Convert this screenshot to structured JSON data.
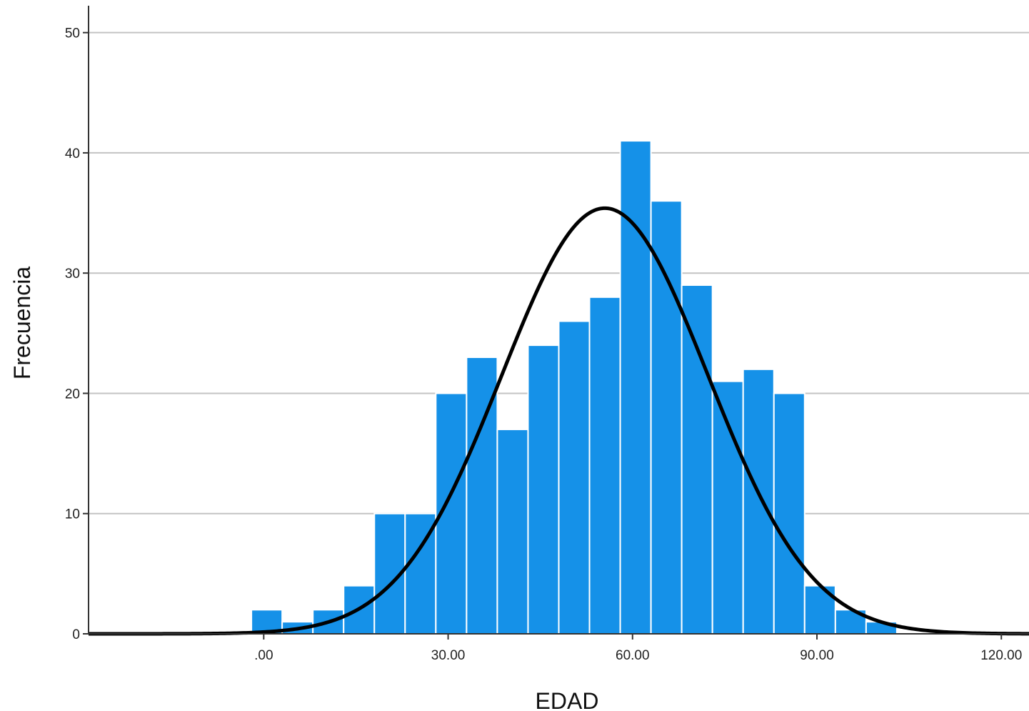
{
  "chart_data": {
    "type": "bar",
    "subtype": "histogram",
    "xlabel": "EDAD",
    "ylabel": "Frecuencia",
    "bin_width": 5,
    "bins": [
      {
        "start": -2,
        "end": 3,
        "count": 2
      },
      {
        "start": 3,
        "end": 8,
        "count": 1
      },
      {
        "start": 8,
        "end": 13,
        "count": 2
      },
      {
        "start": 13,
        "end": 18,
        "count": 4
      },
      {
        "start": 18,
        "end": 23,
        "count": 10
      },
      {
        "start": 23,
        "end": 28,
        "count": 10
      },
      {
        "start": 28,
        "end": 33,
        "count": 20
      },
      {
        "start": 33,
        "end": 38,
        "count": 23
      },
      {
        "start": 38,
        "end": 43,
        "count": 17
      },
      {
        "start": 43,
        "end": 48,
        "count": 24
      },
      {
        "start": 48,
        "end": 53,
        "count": 26
      },
      {
        "start": 53,
        "end": 58,
        "count": 28
      },
      {
        "start": 58,
        "end": 63,
        "count": 41
      },
      {
        "start": 63,
        "end": 68,
        "count": 36
      },
      {
        "start": 68,
        "end": 73,
        "count": 29
      },
      {
        "start": 73,
        "end": 78,
        "count": 21
      },
      {
        "start": 78,
        "end": 83,
        "count": 22
      },
      {
        "start": 83,
        "end": 88,
        "count": 20
      },
      {
        "start": 88,
        "end": 93,
        "count": 4
      },
      {
        "start": 93,
        "end": 98,
        "count": 2
      },
      {
        "start": 98,
        "end": 103,
        "count": 1
      }
    ],
    "normal_curve": {
      "mean": 55.5,
      "sd": 16.8,
      "peak": 35.4
    },
    "xlim": [
      -28.5,
      124.5
    ],
    "ylim": [
      0,
      52
    ],
    "x_ticks": [
      {
        "value": 0,
        "label": ".00"
      },
      {
        "value": 30,
        "label": "30.00"
      },
      {
        "value": 60,
        "label": "60.00"
      },
      {
        "value": 90,
        "label": "90.00"
      },
      {
        "value": 120,
        "label": "120.00"
      }
    ],
    "y_ticks": [
      {
        "value": 0,
        "label": "0"
      },
      {
        "value": 10,
        "label": "10"
      },
      {
        "value": 20,
        "label": "20"
      },
      {
        "value": 30,
        "label": "30"
      },
      {
        "value": 40,
        "label": "40"
      },
      {
        "value": 50,
        "label": "50"
      }
    ],
    "grid": "horizontal",
    "colors": {
      "bar": "#1591e8",
      "curve": "#000000",
      "grid": "#c3c3c3",
      "axis": "#333333"
    }
  }
}
